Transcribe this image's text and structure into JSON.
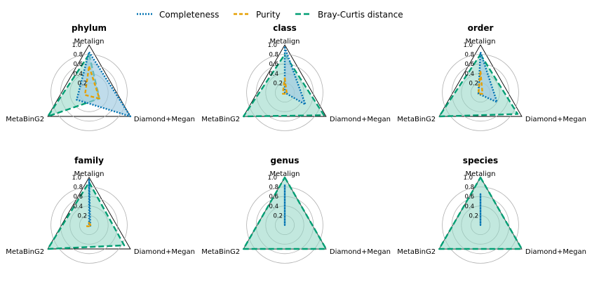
{
  "legend": [
    {
      "name": "Completeness",
      "color": "#0072B2",
      "dash": "2,2"
    },
    {
      "name": "Purity",
      "color": "#E69F00",
      "dash": "5,3"
    },
    {
      "name": "Bray-Curtis distance",
      "color": "#009E73",
      "dash": "8,4"
    }
  ],
  "axes": [
    "Metalign",
    "Diamond+Megan",
    "MetaBinG2"
  ],
  "ticks": [
    "0.2",
    "0.4",
    "0.6",
    "0.8",
    "1.0"
  ],
  "fill_colors": {
    "Completeness": "#9ecae1",
    "Bray-Curtis distance": "#8fd6c2"
  },
  "chart_data": [
    {
      "type": "radar",
      "title": "phylum",
      "series": [
        {
          "name": "Completeness",
          "values": [
            0.85,
            1.0,
            0.3
          ]
        },
        {
          "name": "Purity",
          "values": [
            0.55,
            0.25,
            0.1
          ]
        },
        {
          "name": "Bray-Curtis distance",
          "values": [
            0.8,
            0.25,
            1.0
          ]
        }
      ]
    },
    {
      "type": "radar",
      "title": "class",
      "series": [
        {
          "name": "Completeness",
          "values": [
            0.95,
            0.5,
            0.0
          ]
        },
        {
          "name": "Purity",
          "values": [
            0.3,
            0.05,
            0.05
          ]
        },
        {
          "name": "Bray-Curtis distance",
          "values": [
            0.8,
            0.95,
            1.0
          ]
        }
      ]
    },
    {
      "type": "radar",
      "title": "order",
      "series": [
        {
          "name": "Completeness",
          "values": [
            0.85,
            0.4,
            0.05
          ]
        },
        {
          "name": "Purity",
          "values": [
            0.45,
            0.05,
            0.05
          ]
        },
        {
          "name": "Bray-Curtis distance",
          "values": [
            0.8,
            0.9,
            1.0
          ]
        }
      ]
    },
    {
      "type": "radar",
      "title": "family",
      "series": [
        {
          "name": "Completeness",
          "values": [
            0.95,
            0.03,
            0.0
          ]
        },
        {
          "name": "Purity",
          "values": [
            0.05,
            0.05,
            0.05
          ]
        },
        {
          "name": "Bray-Curtis distance",
          "values": [
            0.9,
            0.85,
            1.0
          ]
        }
      ]
    },
    {
      "type": "radar",
      "title": "genus",
      "series": [
        {
          "name": "Completeness",
          "values": [
            0.85,
            0.0,
            0.0
          ]
        },
        {
          "name": "Purity",
          "values": [
            0.0,
            0.0,
            0.0
          ]
        },
        {
          "name": "Bray-Curtis distance",
          "values": [
            1.0,
            1.0,
            1.0
          ]
        }
      ]
    },
    {
      "type": "radar",
      "title": "species",
      "series": [
        {
          "name": "Completeness",
          "values": [
            0.65,
            0.0,
            0.0
          ]
        },
        {
          "name": "Purity",
          "values": [
            0.0,
            0.0,
            0.0
          ]
        },
        {
          "name": "Bray-Curtis distance",
          "values": [
            1.0,
            1.0,
            1.0
          ]
        }
      ]
    }
  ]
}
